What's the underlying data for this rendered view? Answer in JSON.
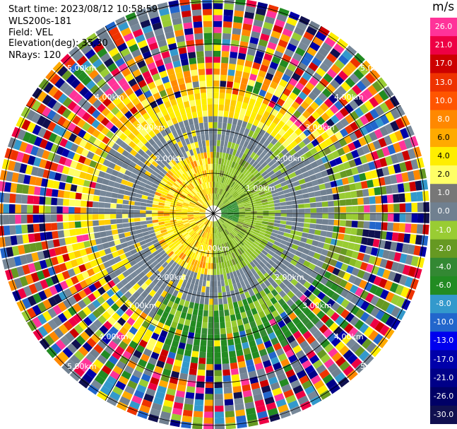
{
  "info": {
    "start_time": "Start time: 2023/08/12 10:58:59",
    "instrument": "WLS200s-181",
    "field": "Field: VEL",
    "elevation": "Elevation(deg): 35.30",
    "nrays": "NRays: 120"
  },
  "colorbar": {
    "unit": "m/s",
    "colors": [
      "#ff3399",
      "#ee0044",
      "#cc0000",
      "#ee3300",
      "#ff5500",
      "#ff8800",
      "#ffaa00",
      "#ffee00",
      "#ffff66",
      "#777777",
      "#708090",
      "#99cc33",
      "#669922",
      "#338833",
      "#228b22",
      "#3399cc",
      "#2266cc",
      "#0000ee",
      "#0000aa",
      "#000088",
      "#000066",
      "#101050"
    ],
    "labels": [
      "26.0",
      "21.0",
      "17.0",
      "13.0",
      "10.0",
      "8.0",
      "6.0",
      "4.0",
      "2.0",
      "1.0",
      "0.0",
      "-1.0",
      "-2.0",
      "-4.0",
      "-6.0",
      "-8.0",
      "-10.0",
      "-13.0",
      "-17.0",
      "-21.0",
      "-26.0",
      "-30.0"
    ]
  },
  "rings": {
    "labels": [
      "1.00km",
      "2.00km",
      "3.00km",
      "4.00km",
      "5.00km"
    ],
    "visible_labels": [
      {
        "text": "1.00km"
      },
      {
        "text": "1.00km"
      },
      {
        "text": "2.00km"
      },
      {
        "text": "2.00km"
      },
      {
        "text": "2.00km"
      },
      {
        "text": "2.00km"
      },
      {
        "text": "3.00km"
      },
      {
        "text": "3.00km"
      },
      {
        "text": "3.00km"
      },
      {
        "text": "3.00km"
      },
      {
        "text": "4.00km"
      },
      {
        "text": "4.00km"
      },
      {
        "text": "4.00km"
      },
      {
        "text": "4.00km"
      },
      {
        "text": "5.00km"
      },
      {
        "text": "5.00km"
      },
      {
        "text": "5.00km"
      },
      {
        "text": "5.00km"
      }
    ]
  }
}
